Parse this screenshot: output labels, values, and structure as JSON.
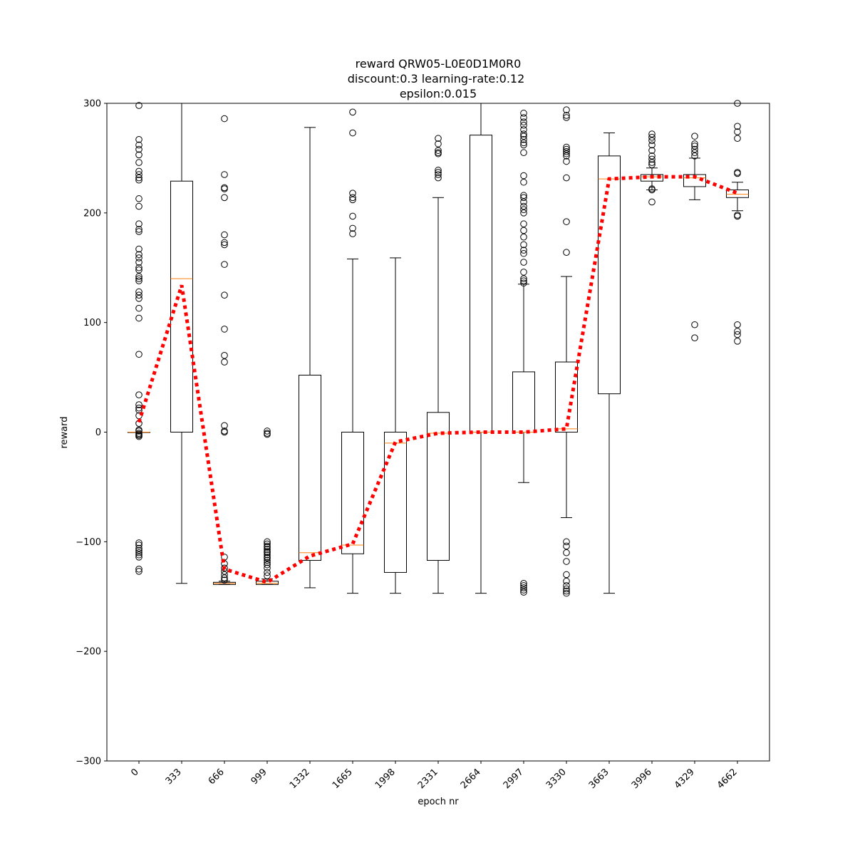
{
  "chart_data": {
    "type": "box",
    "title_lines": [
      "reward QRW05-L0E0D1M0R0",
      "discount:0.3 learning-rate:0.12",
      "epsilon:0.015"
    ],
    "xlabel": "epoch nr",
    "ylabel": "reward",
    "ylim": [
      -300,
      300
    ],
    "yticks": [
      -300,
      -200,
      -100,
      0,
      100,
      200,
      300
    ],
    "yticklabels": [
      "−300",
      "−200",
      "−100",
      "0",
      "100",
      "200",
      "300"
    ],
    "categories": [
      "0",
      "333",
      "666",
      "999",
      "1332",
      "1665",
      "1998",
      "2331",
      "2664",
      "2997",
      "3330",
      "3663",
      "3996",
      "4329",
      "4662"
    ],
    "grid": false,
    "colors": {
      "box": "#000000",
      "median": "#ff7f0e",
      "mean_line": "#ff0000"
    },
    "boxes": [
      {
        "whislo": 0,
        "q1": 0,
        "med": 0,
        "q3": 0,
        "whishi": 0,
        "fliers": [
          298,
          267,
          262,
          258,
          253,
          246,
          238,
          235,
          232,
          230,
          213,
          206,
          190,
          185,
          183,
          167,
          162,
          159,
          155,
          150,
          148,
          142,
          140,
          138,
          128,
          125,
          122,
          113,
          104,
          71,
          34,
          25,
          22,
          20,
          15,
          8,
          2,
          1,
          -1,
          -2,
          -3,
          -4,
          -101,
          -103,
          -106,
          -108,
          -110,
          -112,
          -114,
          -125,
          -127
        ]
      },
      {
        "whislo": -138,
        "q1": 0,
        "med": 140,
        "q3": 229,
        "whishi": 300,
        "fliers": []
      },
      {
        "whislo": -139,
        "q1": -139,
        "med": -138,
        "q3": -137,
        "whishi": -136,
        "fliers": [
          286,
          235,
          223,
          222,
          214,
          180,
          173,
          171,
          153,
          125,
          94,
          70,
          64,
          6,
          1,
          0,
          -114,
          -120,
          -124,
          -127,
          -130,
          -133,
          -135
        ]
      },
      {
        "whislo": -139,
        "q1": -139,
        "med": -138,
        "q3": -136,
        "whishi": -134,
        "fliers": [
          1,
          -1,
          -2,
          -100,
          -102,
          -104,
          -105,
          -107,
          -109,
          -110,
          -112,
          -114,
          -115,
          -117,
          -119,
          -121,
          -124,
          -128,
          -131
        ]
      },
      {
        "whislo": -142,
        "q1": -117,
        "med": -110,
        "q3": 52,
        "whishi": 278,
        "fliers": []
      },
      {
        "whislo": -147,
        "q1": -111,
        "med": -103,
        "q3": 0,
        "whishi": 158,
        "fliers": [
          292,
          273,
          218,
          214,
          212,
          197,
          186,
          181
        ]
      },
      {
        "whislo": -147,
        "q1": -128,
        "med": -10,
        "q3": 0,
        "whishi": 159,
        "fliers": []
      },
      {
        "whislo": -147,
        "q1": -117,
        "med": -1,
        "q3": 18,
        "whishi": 214,
        "fliers": [
          268,
          263,
          257,
          255,
          254,
          239,
          237,
          235,
          232
        ]
      },
      {
        "whislo": -147,
        "q1": 0,
        "med": 0,
        "q3": 271,
        "whishi": 300,
        "fliers": []
      },
      {
        "whislo": -46,
        "q1": 0,
        "med": 0,
        "q3": 55,
        "whishi": 135,
        "fliers": [
          291,
          287,
          283,
          280,
          276,
          272,
          270,
          267,
          264,
          262,
          255,
          234,
          228,
          216,
          214,
          210,
          206,
          203,
          200,
          190,
          184,
          178,
          171,
          166,
          163,
          155,
          146,
          140,
          138,
          136,
          -138,
          -140,
          -142,
          -144,
          -146
        ]
      },
      {
        "whislo": -78,
        "q1": 0,
        "med": 3,
        "q3": 64,
        "whishi": 142,
        "fliers": [
          294,
          289,
          287,
          260,
          258,
          256,
          254,
          252,
          247,
          232,
          192,
          164,
          -100,
          -104,
          -110,
          -118,
          -130,
          -136,
          -140,
          -143,
          -145,
          -147
        ]
      },
      {
        "whislo": -147,
        "q1": 35,
        "med": 231,
        "q3": 252,
        "whishi": 273,
        "fliers": []
      },
      {
        "whislo": 221,
        "q1": 229,
        "med": 233,
        "q3": 235,
        "whishi": 241,
        "fliers": [
          272,
          269,
          266,
          262,
          257,
          252,
          249,
          246,
          244,
          222,
          221,
          210
        ]
      },
      {
        "whislo": 212,
        "q1": 224,
        "med": 232,
        "q3": 235,
        "whishi": 250,
        "fliers": [
          270,
          263,
          261,
          258,
          255,
          252,
          98,
          86
        ]
      },
      {
        "whislo": 202,
        "q1": 214,
        "med": 217,
        "q3": 221,
        "whishi": 228,
        "fliers": [
          300,
          279,
          274,
          268,
          237,
          236,
          198,
          197,
          98,
          92,
          89,
          83
        ]
      }
    ],
    "mean_line": [
      9,
      134,
      -125,
      -137,
      -113,
      -102,
      -9,
      -1,
      0,
      0,
      3,
      231,
      233,
      233,
      218
    ]
  }
}
